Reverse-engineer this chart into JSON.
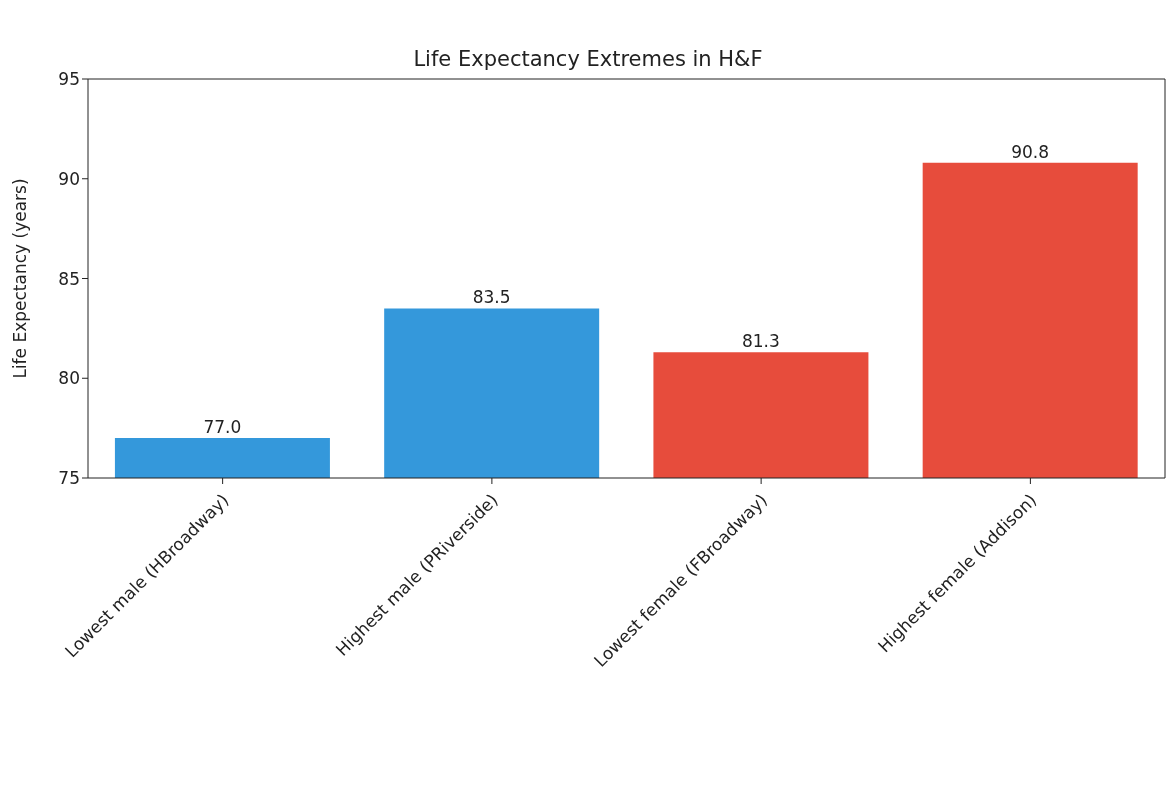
{
  "chart_data": {
    "type": "bar",
    "title": "Life Expectancy Extremes in H&F",
    "ylabel": "Life Expectancy (years)",
    "categories": [
      "Lowest male (HBroadway)",
      "Highest male (PRiverside)",
      "Lowest female (FBroadway)",
      "Highest female (Addison)"
    ],
    "values": [
      77.0,
      83.5,
      81.3,
      90.8
    ],
    "colors": [
      "#3498db",
      "#3498db",
      "#e74c3c",
      "#e74c3c"
    ],
    "value_labels": [
      "77.0",
      "83.5",
      "81.3",
      "90.8"
    ],
    "ylim": [
      75,
      95
    ],
    "yticks": [
      75,
      80,
      85,
      90,
      95
    ],
    "grid": false
  }
}
